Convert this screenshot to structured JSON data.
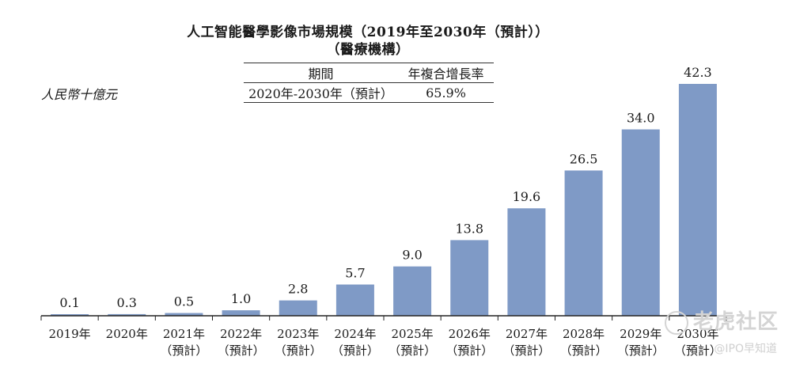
{
  "chart_data": {
    "type": "bar",
    "title": "人工智能醫學影像市場規模（2019年至2030年（預計））",
    "subtitle": "（醫療機構）",
    "ylabel": "人民幣十億元",
    "categories": [
      [
        "2019年",
        ""
      ],
      [
        "2020年",
        ""
      ],
      [
        "2021年",
        "（預計）"
      ],
      [
        "2022年",
        "（預計）"
      ],
      [
        "2023年",
        "（預計）"
      ],
      [
        "2024年",
        "（預計）"
      ],
      [
        "2025年",
        "（預計）"
      ],
      [
        "2026年",
        "（預計）"
      ],
      [
        "2027年",
        "（預計）"
      ],
      [
        "2028年",
        "（預計）"
      ],
      [
        "2029年",
        "（預計）"
      ],
      [
        "2030年",
        "（預計）"
      ]
    ],
    "values": [
      0.1,
      0.3,
      0.5,
      1.0,
      2.8,
      5.7,
      9.0,
      13.8,
      19.6,
      26.5,
      34.0,
      42.3
    ],
    "value_labels": [
      "0.1",
      "0.3",
      "0.5",
      "1.0",
      "2.8",
      "5.7",
      "9.0",
      "13.8",
      "19.6",
      "26.5",
      "34.0",
      "42.3"
    ],
    "ylim": [
      0,
      42.3
    ],
    "bar_color": "#7f9ac6",
    "grid": false,
    "table": {
      "headers": [
        "期間",
        "年複合增長率"
      ],
      "rows": [
        [
          "2020年-2030年（預計）",
          "65.9%"
        ]
      ]
    }
  },
  "watermark": "老虎社区",
  "credit": "@IPO早知道"
}
